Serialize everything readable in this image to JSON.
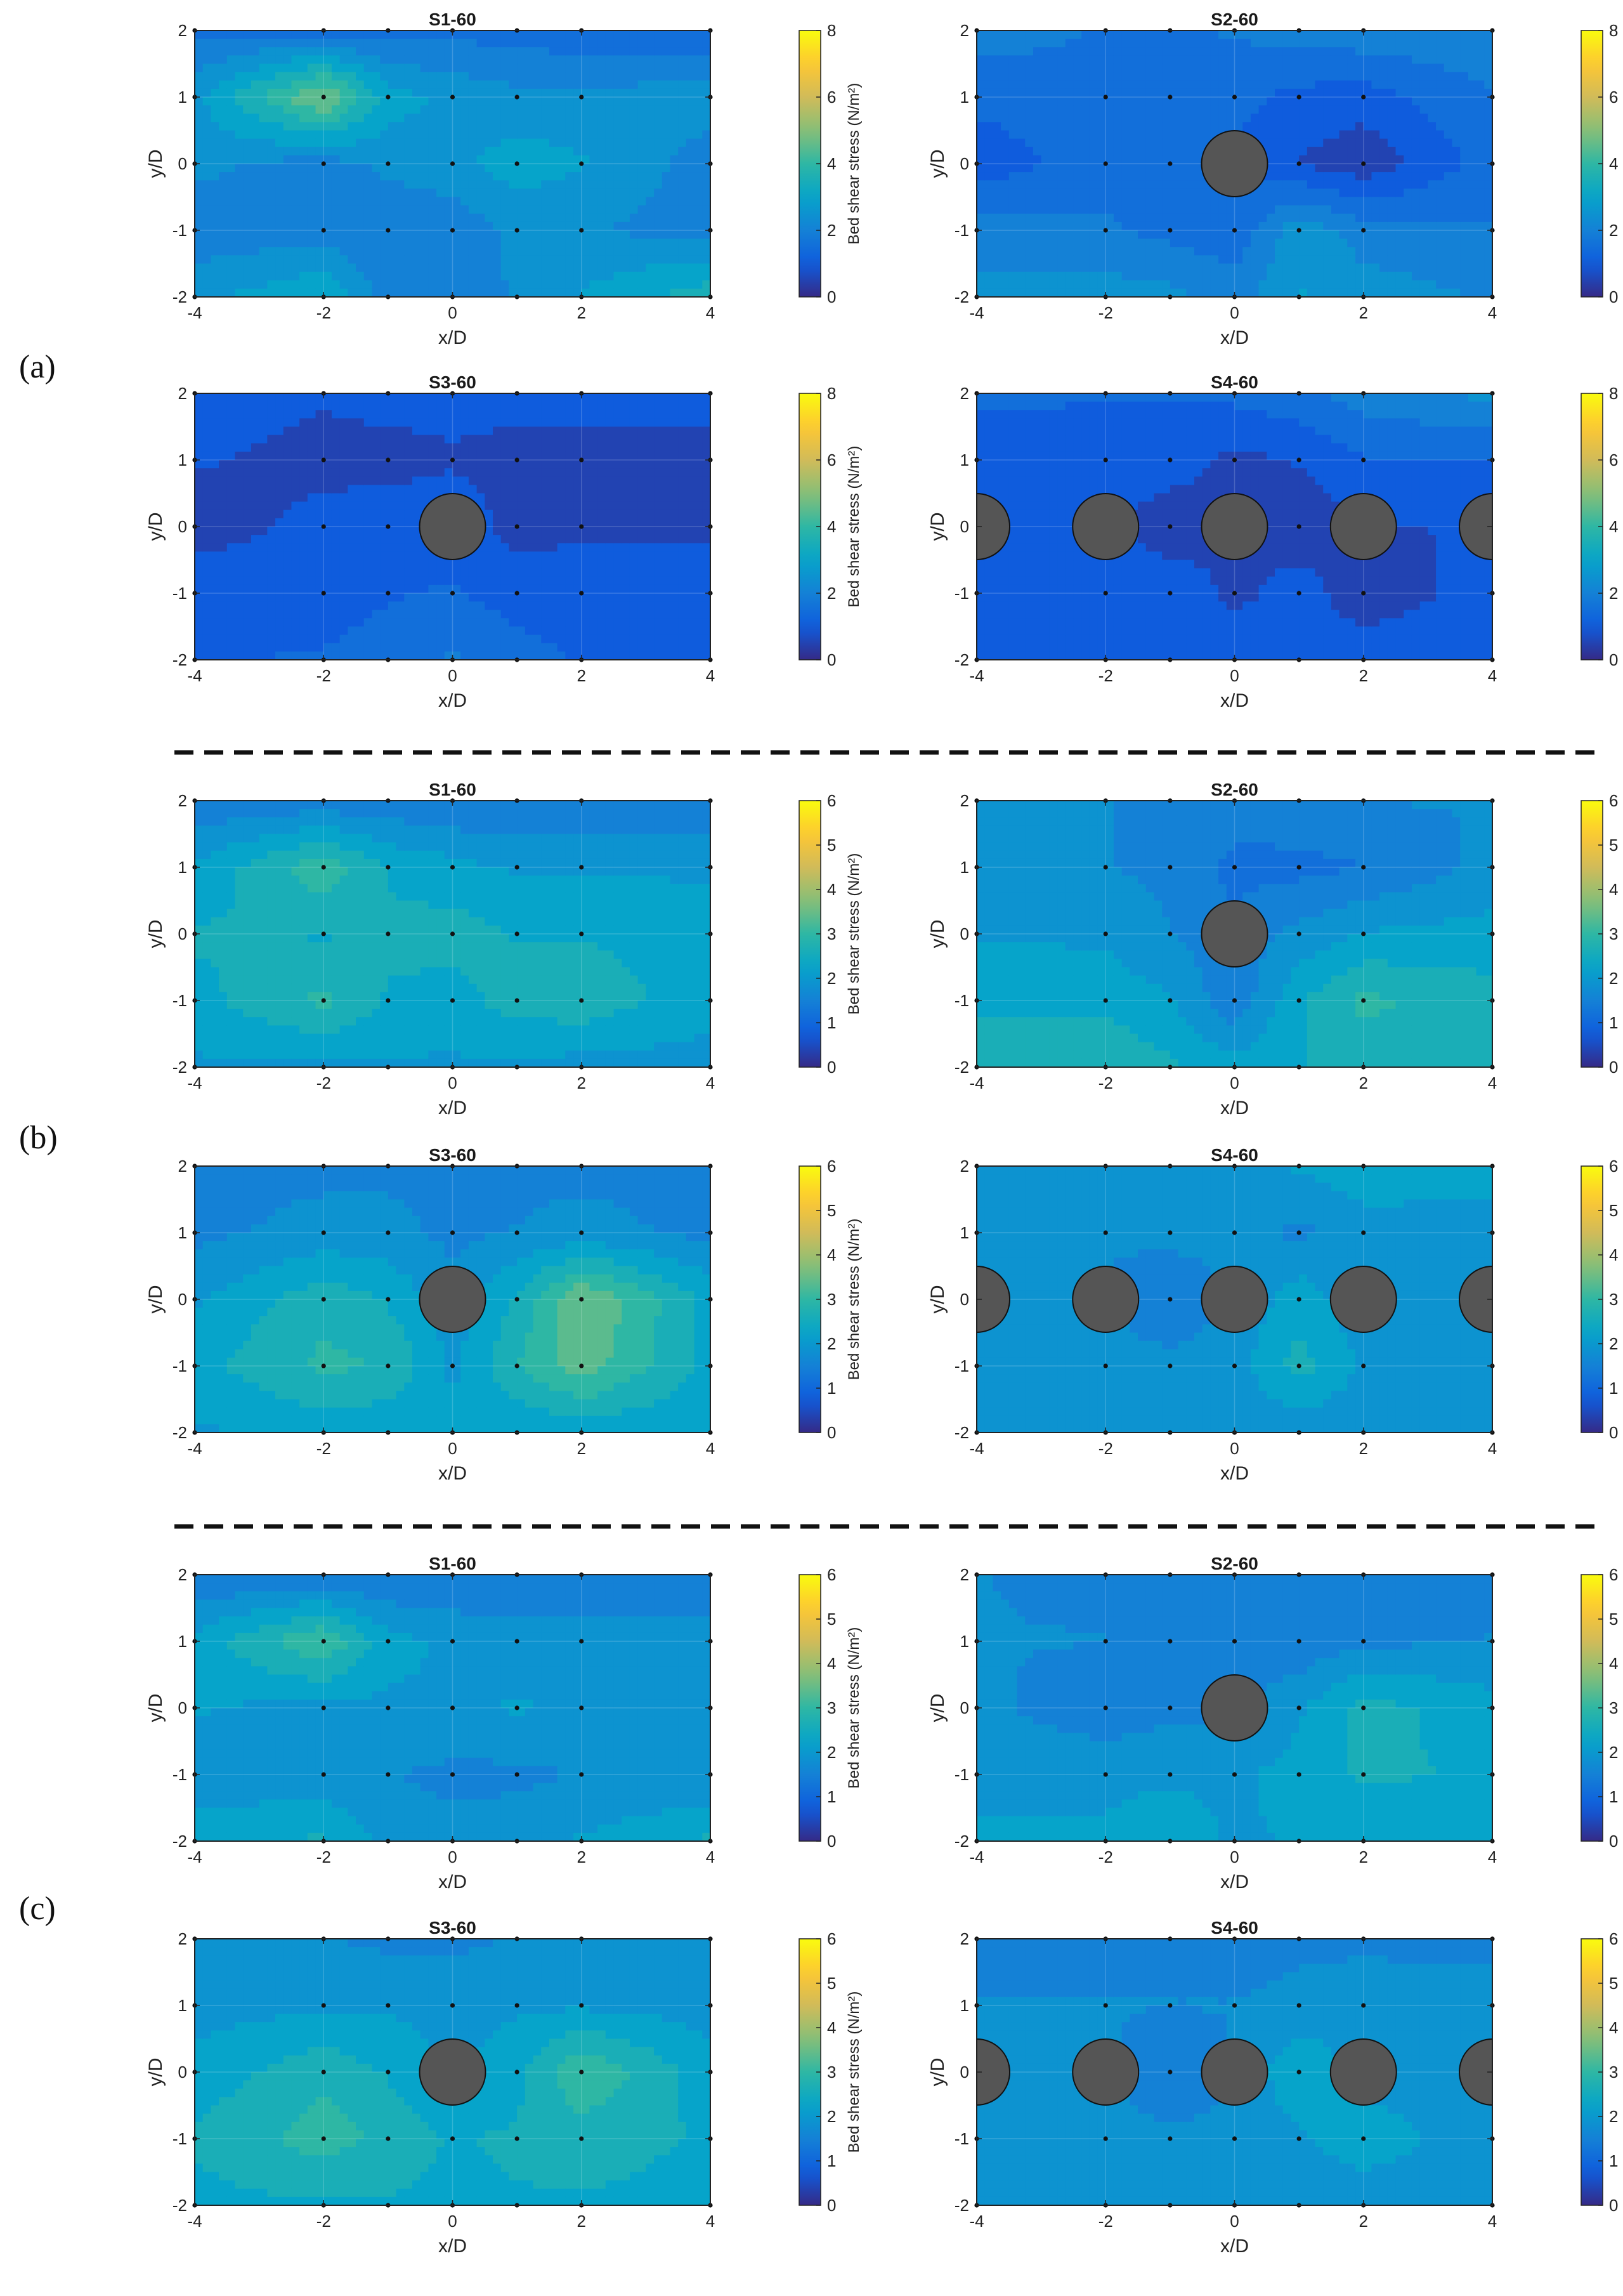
{
  "figure": {
    "group_labels": [
      "(a)",
      "(b)",
      "(c)"
    ],
    "colorbar_title": "Bed shear stress (N/m²)",
    "colors": {
      "parula": [
        "#352a87",
        "#0f5cdd",
        "#1481d6",
        "#06a4ca",
        "#2eb7a4",
        "#87bf77",
        "#d1bb59",
        "#fec832",
        "#f9fb0e"
      ],
      "pier": "#555555",
      "grid_point": "#111111",
      "separator": "#111111"
    }
  },
  "chart_data": [
    {
      "type": "contour",
      "group": "(a)",
      "title": "S1-60",
      "xlabel": "x/D",
      "ylabel": "y/D",
      "xlim": [
        -4,
        4
      ],
      "ylim": [
        -2,
        2
      ],
      "xticks": [
        -4,
        -2,
        0,
        2,
        4
      ],
      "yticks": [
        -2,
        -1,
        0,
        1,
        2
      ],
      "cbar_range": [
        0,
        8
      ],
      "cbar_ticks": [
        0,
        2,
        4,
        6,
        8
      ],
      "piers_x": [],
      "x": [
        -4,
        -2,
        -1,
        0,
        1,
        2,
        4
      ],
      "y": [
        -2,
        -1,
        0,
        1,
        2
      ],
      "z": [
        [
          2.6,
          3.2,
          2.0,
          1.9,
          2.3,
          2.8,
          3.6
        ],
        [
          1.9,
          2.0,
          1.8,
          1.9,
          2.4,
          2.3,
          2.0
        ],
        [
          2.4,
          2.0,
          2.4,
          2.6,
          3.0,
          2.8,
          2.0
        ],
        [
          2.6,
          4.9,
          3.0,
          2.6,
          2.4,
          2.4,
          2.5
        ],
        [
          1.6,
          1.5,
          1.5,
          1.6,
          1.5,
          1.4,
          1.4
        ]
      ]
    },
    {
      "type": "contour",
      "group": "(a)",
      "title": "S2-60",
      "xlabel": "x/D",
      "ylabel": "y/D",
      "xlim": [
        -4,
        4
      ],
      "ylim": [
        -2,
        2
      ],
      "xticks": [
        -4,
        -2,
        0,
        2,
        4
      ],
      "yticks": [
        -2,
        -1,
        0,
        1,
        2
      ],
      "cbar_range": [
        0,
        8
      ],
      "cbar_ticks": [
        0,
        2,
        4,
        6,
        8
      ],
      "piers_x": [
        0
      ],
      "x": [
        -4,
        -2,
        -1,
        0,
        1,
        2,
        4
      ],
      "y": [
        -2,
        -1,
        0,
        1,
        2
      ],
      "z": [
        [
          2.4,
          2.5,
          2.4,
          2.0,
          2.8,
          2.5,
          2.2
        ],
        [
          2.0,
          1.8,
          1.6,
          1.4,
          2.6,
          2.0,
          1.8
        ],
        [
          0.9,
          1.6,
          1.5,
          1.2,
          0.7,
          0.4,
          1.5
        ],
        [
          1.4,
          1.6,
          1.6,
          1.4,
          1.1,
          1.0,
          1.7
        ],
        [
          2.0,
          1.7,
          1.7,
          1.8,
          2.0,
          2.1,
          2.2
        ]
      ]
    },
    {
      "type": "contour",
      "group": "(a)",
      "title": "S3-60",
      "xlabel": "x/D",
      "ylabel": "y/D",
      "xlim": [
        -4,
        4
      ],
      "ylim": [
        -2,
        2
      ],
      "xticks": [
        -4,
        -2,
        0,
        2,
        4
      ],
      "yticks": [
        -2,
        -1,
        0,
        1,
        2
      ],
      "cbar_range": [
        0,
        8
      ],
      "cbar_ticks": [
        0,
        2,
        4,
        6,
        8
      ],
      "piers_x": [
        0
      ],
      "x": [
        -4,
        -2,
        -1,
        0,
        1,
        2,
        4
      ],
      "y": [
        -2,
        -1,
        0,
        1,
        2
      ],
      "z": [
        [
          1.2,
          1.3,
          1.5,
          1.8,
          1.5,
          1.2,
          1.2
        ],
        [
          1.1,
          1.0,
          1.2,
          1.3,
          1.0,
          0.9,
          0.9
        ],
        [
          0.5,
          0.9,
          1.0,
          1.0,
          0.6,
          0.7,
          0.7
        ],
        [
          0.8,
          0.6,
          0.6,
          0.7,
          0.6,
          0.6,
          0.6
        ],
        [
          1.0,
          0.8,
          0.9,
          0.9,
          0.9,
          0.9,
          0.9
        ]
      ]
    },
    {
      "type": "contour",
      "group": "(a)",
      "title": "S4-60",
      "xlabel": "x/D",
      "ylabel": "y/D",
      "xlim": [
        -4,
        4
      ],
      "ylim": [
        -2,
        2
      ],
      "xticks": [
        -4,
        -2,
        0,
        2,
        4
      ],
      "yticks": [
        -2,
        -1,
        0,
        1,
        2
      ],
      "cbar_range": [
        0,
        8
      ],
      "cbar_ticks": [
        0,
        2,
        4,
        6,
        8
      ],
      "piers_x": [
        -4,
        -2,
        0,
        2,
        4
      ],
      "x": [
        -4,
        -2,
        -1,
        0,
        1,
        2,
        4
      ],
      "y": [
        -2,
        -1,
        0,
        1,
        2
      ],
      "z": [
        [
          1.2,
          1.2,
          1.2,
          1.1,
          1.1,
          1.1,
          1.1
        ],
        [
          1.1,
          1.1,
          1.1,
          0.6,
          1.0,
          0.4,
          1.0
        ],
        [
          0.9,
          0.9,
          0.4,
          0.8,
          0.4,
          0.7,
          0.8
        ],
        [
          1.1,
          1.0,
          1.0,
          0.6,
          0.8,
          1.2,
          1.2
        ],
        [
          1.3,
          1.3,
          1.3,
          1.4,
          1.6,
          2.0,
          2.4
        ]
      ]
    },
    {
      "type": "contour",
      "group": "(b)",
      "title": "S1-60",
      "xlabel": "x/D",
      "ylabel": "y/D",
      "xlim": [
        -4,
        4
      ],
      "ylim": [
        -2,
        2
      ],
      "xticks": [
        -4,
        -2,
        0,
        2,
        4
      ],
      "yticks": [
        -2,
        -1,
        0,
        1,
        2
      ],
      "cbar_range": [
        0,
        6
      ],
      "cbar_ticks": [
        0,
        1,
        2,
        3,
        4,
        5,
        6
      ],
      "piers_x": [],
      "x": [
        -4,
        -2,
        -1,
        0,
        1,
        2,
        4
      ],
      "y": [
        -2,
        -1,
        0,
        1,
        2
      ],
      "z": [
        [
          2.0,
          2.0,
          2.0,
          2.0,
          2.0,
          1.9,
          1.9
        ],
        [
          2.3,
          2.9,
          2.4,
          2.3,
          2.6,
          2.7,
          2.2
        ],
        [
          2.5,
          2.4,
          2.5,
          2.6,
          2.4,
          2.4,
          2.3
        ],
        [
          2.1,
          3.1,
          2.4,
          2.2,
          2.0,
          2.0,
          2.0
        ],
        [
          1.4,
          1.4,
          1.4,
          1.3,
          1.3,
          1.3,
          1.3
        ]
      ]
    },
    {
      "type": "contour",
      "group": "(b)",
      "title": "S2-60",
      "xlabel": "x/D",
      "ylabel": "y/D",
      "xlim": [
        -4,
        4
      ],
      "ylim": [
        -2,
        2
      ],
      "xticks": [
        -4,
        -2,
        0,
        2,
        4
      ],
      "yticks": [
        -2,
        -1,
        0,
        1,
        2
      ],
      "cbar_range": [
        0,
        6
      ],
      "cbar_ticks": [
        0,
        1,
        2,
        3,
        4,
        5,
        6
      ],
      "piers_x": [
        0
      ],
      "x": [
        -4,
        -2,
        -1,
        0,
        1,
        2,
        4
      ],
      "y": [
        -2,
        -1,
        0,
        1,
        2
      ],
      "z": [
        [
          2.6,
          2.8,
          2.5,
          2.2,
          2.4,
          2.6,
          2.6
        ],
        [
          2.4,
          2.3,
          2.1,
          1.4,
          2.4,
          2.9,
          2.6
        ],
        [
          2.0,
          2.0,
          1.7,
          1.4,
          1.8,
          2.1,
          2.2
        ],
        [
          1.8,
          1.7,
          1.6,
          1.2,
          1.2,
          1.3,
          1.8
        ],
        [
          1.8,
          1.7,
          1.6,
          1.5,
          1.6,
          1.7,
          1.7
        ]
      ]
    },
    {
      "type": "contour",
      "group": "(b)",
      "title": "S3-60",
      "xlabel": "x/D",
      "ylabel": "y/D",
      "xlim": [
        -4,
        4
      ],
      "ylim": [
        -2,
        2
      ],
      "xticks": [
        -4,
        -2,
        0,
        2,
        4
      ],
      "yticks": [
        -2,
        -1,
        0,
        1,
        2
      ],
      "cbar_range": [
        0,
        6
      ],
      "cbar_ticks": [
        0,
        1,
        2,
        3,
        4,
        5,
        6
      ],
      "piers_x": [
        0
      ],
      "x": [
        -4,
        -2,
        -1,
        0,
        1,
        2,
        4
      ],
      "y": [
        -2,
        -1,
        0,
        1,
        2
      ],
      "z": [
        [
          2.0,
          2.2,
          2.1,
          2.1,
          2.1,
          2.2,
          2.1
        ],
        [
          2.3,
          2.9,
          2.8,
          2.0,
          2.8,
          3.4,
          2.3
        ],
        [
          2.0,
          2.7,
          2.4,
          1.8,
          2.5,
          3.6,
          2.3
        ],
        [
          1.6,
          1.8,
          1.8,
          1.6,
          1.7,
          1.8,
          1.6
        ],
        [
          1.6,
          1.6,
          1.6,
          1.6,
          1.6,
          1.6,
          1.6
        ]
      ]
    },
    {
      "type": "contour",
      "group": "(b)",
      "title": "S4-60",
      "xlabel": "x/D",
      "ylabel": "y/D",
      "xlim": [
        -4,
        4
      ],
      "ylim": [
        -2,
        2
      ],
      "xticks": [
        -4,
        -2,
        0,
        2,
        4
      ],
      "yticks": [
        -2,
        -1,
        0,
        1,
        2
      ],
      "cbar_range": [
        0,
        6
      ],
      "cbar_ticks": [
        0,
        1,
        2,
        3,
        4,
        5,
        6
      ],
      "piers_x": [
        -4,
        -2,
        0,
        2,
        4
      ],
      "x": [
        -4,
        -2,
        -1,
        0,
        1,
        2,
        4
      ],
      "y": [
        -2,
        -1,
        0,
        1,
        2
      ],
      "z": [
        [
          1.7,
          1.7,
          1.7,
          1.8,
          1.8,
          1.8,
          1.7
        ],
        [
          1.7,
          1.8,
          1.8,
          1.9,
          2.6,
          2.0,
          1.8
        ],
        [
          1.7,
          1.7,
          1.4,
          1.7,
          2.3,
          1.8,
          1.7
        ],
        [
          1.7,
          1.7,
          1.8,
          1.8,
          1.6,
          1.9,
          1.9
        ],
        [
          1.8,
          1.8,
          1.9,
          2.0,
          2.1,
          2.3,
          2.2
        ]
      ]
    },
    {
      "type": "contour",
      "group": "(c)",
      "title": "S1-60",
      "xlabel": "x/D",
      "ylabel": "y/D",
      "xlim": [
        -4,
        4
      ],
      "ylim": [
        -2,
        2
      ],
      "xticks": [
        -4,
        -2,
        0,
        2,
        4
      ],
      "yticks": [
        -2,
        -1,
        0,
        1,
        2
      ],
      "cbar_range": [
        0,
        6
      ],
      "cbar_ticks": [
        0,
        1,
        2,
        3,
        4,
        5,
        6
      ],
      "piers_x": [],
      "x": [
        -4,
        -2,
        -1,
        0,
        1,
        2,
        4
      ],
      "y": [
        -2,
        -1,
        0,
        1,
        2
      ],
      "z": [
        [
          2.3,
          2.5,
          1.9,
          1.8,
          1.9,
          2.1,
          2.5
        ],
        [
          1.8,
          1.8,
          1.7,
          1.6,
          1.6,
          1.7,
          1.7
        ],
        [
          2.1,
          1.9,
          2.0,
          2.0,
          2.1,
          2.0,
          1.9
        ],
        [
          2.2,
          3.2,
          2.2,
          2.0,
          1.9,
          1.9,
          1.9
        ],
        [
          1.3,
          1.3,
          1.3,
          1.3,
          1.3,
          1.3,
          1.3
        ]
      ]
    },
    {
      "type": "contour",
      "group": "(c)",
      "title": "S2-60",
      "xlabel": "x/D",
      "ylabel": "y/D",
      "xlim": [
        -4,
        4
      ],
      "ylim": [
        -2,
        2
      ],
      "xticks": [
        -4,
        -2,
        0,
        2,
        4
      ],
      "yticks": [
        -2,
        -1,
        0,
        1,
        2
      ],
      "cbar_range": [
        0,
        6
      ],
      "cbar_ticks": [
        0,
        1,
        2,
        3,
        4,
        5,
        6
      ],
      "piers_x": [
        0
      ],
      "x": [
        -4,
        -2,
        -1,
        0,
        1,
        2,
        4
      ],
      "y": [
        -2,
        -1,
        0,
        1,
        2
      ],
      "z": [
        [
          2.1,
          2.1,
          2.3,
          2.0,
          2.1,
          2.1,
          2.1
        ],
        [
          2.0,
          2.0,
          2.0,
          2.0,
          2.2,
          2.5,
          2.4
        ],
        [
          1.8,
          1.4,
          1.6,
          1.6,
          2.0,
          2.6,
          2.2
        ],
        [
          1.7,
          1.7,
          1.5,
          1.4,
          1.4,
          1.6,
          1.7
        ],
        [
          1.7,
          1.6,
          1.5,
          1.4,
          1.4,
          1.5,
          1.6
        ]
      ]
    },
    {
      "type": "contour",
      "group": "(c)",
      "title": "S3-60",
      "xlabel": "x/D",
      "ylabel": "y/D",
      "xlim": [
        -4,
        4
      ],
      "ylim": [
        -2,
        2
      ],
      "xticks": [
        -4,
        -2,
        0,
        2,
        4
      ],
      "yticks": [
        -2,
        -1,
        0,
        1,
        2
      ],
      "cbar_range": [
        0,
        6
      ],
      "cbar_ticks": [
        0,
        1,
        2,
        3,
        4,
        5,
        6
      ],
      "piers_x": [
        0
      ],
      "x": [
        -4,
        -2,
        -1,
        0,
        1,
        2,
        4
      ],
      "y": [
        -2,
        -1,
        0,
        1,
        2
      ],
      "z": [
        [
          2.3,
          2.4,
          2.4,
          2.3,
          2.4,
          2.4,
          2.3
        ],
        [
          2.5,
          3.0,
          2.7,
          2.4,
          2.5,
          2.6,
          2.4
        ],
        [
          2.2,
          2.7,
          2.4,
          2.0,
          2.3,
          3.2,
          2.2
        ],
        [
          1.9,
          2.0,
          2.0,
          1.9,
          2.0,
          2.0,
          1.9
        ],
        [
          1.7,
          1.7,
          1.6,
          1.6,
          1.7,
          1.7,
          1.7
        ]
      ]
    },
    {
      "type": "contour",
      "group": "(c)",
      "title": "S4-60",
      "xlabel": "x/D",
      "ylabel": "y/D",
      "xlim": [
        -4,
        4
      ],
      "ylim": [
        -2,
        2
      ],
      "xticks": [
        -4,
        -2,
        0,
        2,
        4
      ],
      "yticks": [
        -2,
        -1,
        0,
        1,
        2
      ],
      "cbar_range": [
        0,
        6
      ],
      "cbar_ticks": [
        0,
        1,
        2,
        3,
        4,
        5,
        6
      ],
      "piers_x": [
        -4,
        -2,
        0,
        2,
        4
      ],
      "x": [
        -4,
        -2,
        -1,
        0,
        1,
        2,
        4
      ],
      "y": [
        -2,
        -1,
        0,
        1,
        2
      ],
      "z": [
        [
          1.8,
          1.8,
          1.8,
          1.8,
          1.8,
          1.8,
          1.8
        ],
        [
          1.8,
          1.8,
          1.8,
          1.8,
          2.0,
          2.3,
          1.8
        ],
        [
          1.8,
          1.8,
          1.3,
          1.7,
          2.4,
          1.9,
          1.8
        ],
        [
          1.7,
          1.7,
          1.7,
          1.7,
          1.8,
          1.9,
          1.8
        ],
        [
          1.6,
          1.6,
          1.5,
          1.5,
          1.6,
          1.6,
          1.6
        ]
      ]
    }
  ]
}
